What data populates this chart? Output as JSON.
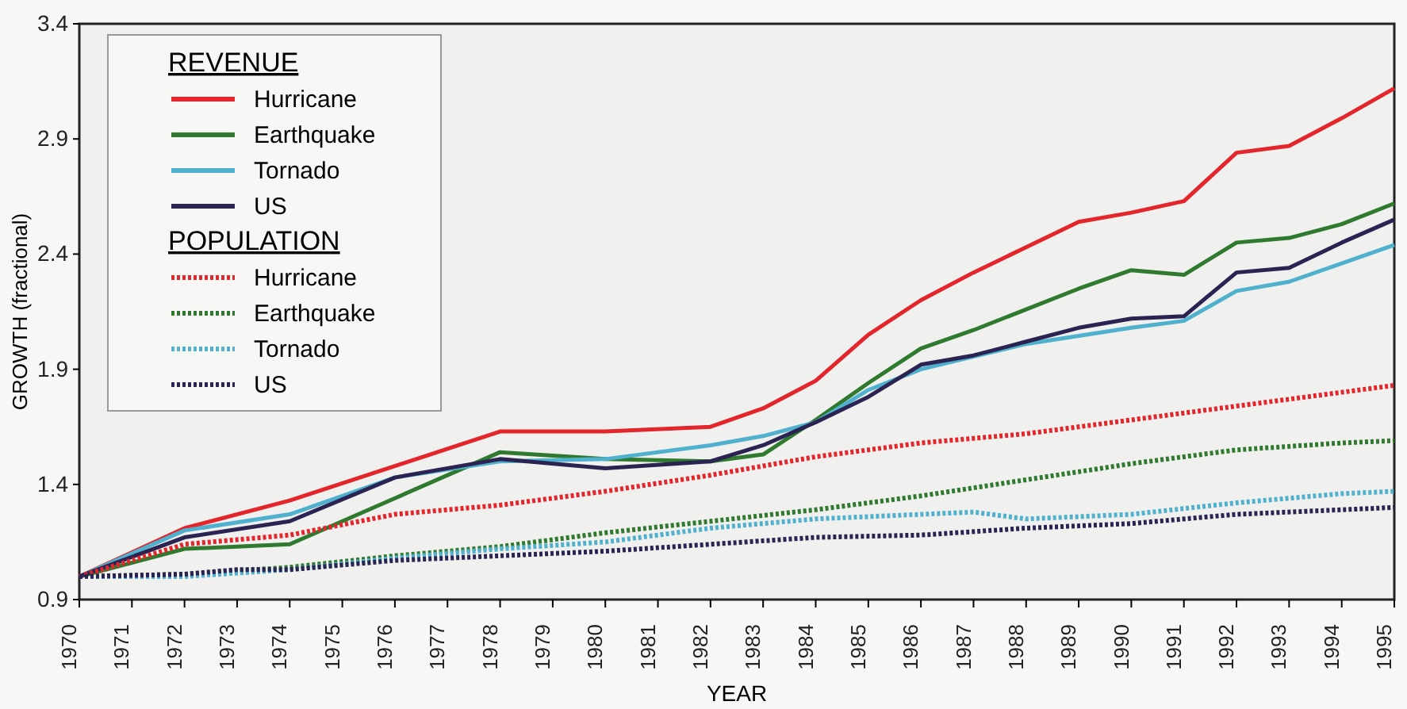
{
  "chart_data": {
    "type": "line",
    "xlabel": "YEAR",
    "ylabel": "GROWTH (fractional)",
    "legend_title": "REVENUE",
    "annotations": [
      "POPULATION"
    ],
    "legend": "top left",
    "grid": false,
    "xlim": [
      1970,
      1995
    ],
    "xticks": [
      1970,
      1971,
      1972,
      1973,
      1974,
      1975,
      1976,
      1977,
      1978,
      1979,
      1980,
      1981,
      1982,
      1983,
      1984,
      1985,
      1986,
      1987,
      1988,
      1989,
      1990,
      1991,
      1992,
      1993,
      1994,
      1995
    ],
    "ylim": [
      0.9,
      3.4
    ],
    "yticks": [
      0.9,
      1.4,
      1.9,
      2.4,
      2.9,
      3.4
    ],
    "series": [
      {
        "name": "Hurricane",
        "color": "#e3262b",
        "line_style": "solid",
        "x": [
          1970,
          1972,
          1974,
          1976,
          1978,
          1980,
          1982,
          1983,
          1984,
          1985,
          1986,
          1987,
          1988,
          1989,
          1990,
          1991,
          1992,
          1993,
          1994,
          1995
        ],
        "values": [
          1.0,
          1.21,
          1.33,
          1.48,
          1.63,
          1.63,
          1.65,
          1.73,
          1.85,
          2.05,
          2.2,
          2.32,
          2.43,
          2.54,
          2.58,
          2.63,
          2.84,
          2.87,
          2.99,
          3.12
        ]
      },
      {
        "name": "Earthquake",
        "color": "#2f7a2f",
        "line_style": "solid",
        "x": [
          1970,
          1972,
          1974,
          1976,
          1978,
          1980,
          1982,
          1983,
          1984,
          1985,
          1986,
          1987,
          1988,
          1989,
          1990,
          1991,
          1992,
          1993,
          1994,
          1995
        ],
        "values": [
          1.0,
          1.12,
          1.14,
          1.34,
          1.54,
          1.51,
          1.5,
          1.53,
          1.68,
          1.84,
          1.99,
          2.07,
          2.16,
          2.25,
          2.33,
          2.31,
          2.45,
          2.47,
          2.53,
          2.62
        ]
      },
      {
        "name": "Tornado",
        "color": "#4fb1cd",
        "line_style": "solid",
        "x": [
          1970,
          1972,
          1974,
          1976,
          1978,
          1980,
          1982,
          1983,
          1984,
          1985,
          1986,
          1988,
          1990,
          1991,
          1992,
          1993,
          1994,
          1995
        ],
        "values": [
          1.0,
          1.2,
          1.27,
          1.43,
          1.5,
          1.51,
          1.57,
          1.61,
          1.67,
          1.81,
          1.9,
          2.01,
          2.08,
          2.11,
          2.24,
          2.28,
          2.36,
          2.44
        ]
      },
      {
        "name": "US",
        "color": "#2b2452",
        "line_style": "solid",
        "x": [
          1970,
          1972,
          1974,
          1976,
          1978,
          1980,
          1982,
          1983,
          1984,
          1985,
          1986,
          1987,
          1988,
          1989,
          1990,
          1991,
          1992,
          1993,
          1994,
          1995
        ],
        "values": [
          1.0,
          1.17,
          1.24,
          1.43,
          1.51,
          1.47,
          1.5,
          1.57,
          1.67,
          1.78,
          1.92,
          1.96,
          2.02,
          2.08,
          2.12,
          2.13,
          2.32,
          2.34,
          2.45,
          2.55
        ]
      },
      {
        "name": "Hurricane",
        "color": "#e3262b",
        "line_style": "dotted",
        "x": [
          1970,
          1972,
          1974,
          1976,
          1978,
          1980,
          1982,
          1984,
          1986,
          1988,
          1990,
          1992,
          1994,
          1995
        ],
        "values": [
          1.0,
          1.14,
          1.18,
          1.27,
          1.31,
          1.37,
          1.44,
          1.52,
          1.58,
          1.62,
          1.68,
          1.74,
          1.8,
          1.83
        ]
      },
      {
        "name": "Earthquake",
        "color": "#2f7a2f",
        "line_style": "dotted",
        "x": [
          1970,
          1972,
          1974,
          1976,
          1978,
          1980,
          1982,
          1984,
          1986,
          1988,
          1990,
          1992,
          1994,
          1995
        ],
        "values": [
          1.0,
          1.01,
          1.04,
          1.09,
          1.13,
          1.19,
          1.24,
          1.29,
          1.35,
          1.42,
          1.49,
          1.55,
          1.58,
          1.59
        ]
      },
      {
        "name": "Tornado",
        "color": "#4fb1cd",
        "line_style": "dotted",
        "x": [
          1970,
          1972,
          1974,
          1976,
          1978,
          1980,
          1982,
          1984,
          1986,
          1987,
          1988,
          1990,
          1992,
          1994,
          1995
        ],
        "values": [
          1.0,
          1.0,
          1.03,
          1.08,
          1.12,
          1.15,
          1.21,
          1.25,
          1.27,
          1.28,
          1.25,
          1.27,
          1.32,
          1.36,
          1.37
        ]
      },
      {
        "name": "US",
        "color": "#2b2452",
        "line_style": "dotted",
        "x": [
          1970,
          1972,
          1973,
          1974,
          1976,
          1978,
          1980,
          1982,
          1984,
          1986,
          1988,
          1990,
          1992,
          1994,
          1995
        ],
        "values": [
          1.0,
          1.01,
          1.03,
          1.03,
          1.07,
          1.09,
          1.11,
          1.14,
          1.17,
          1.18,
          1.21,
          1.23,
          1.27,
          1.29,
          1.3
        ]
      }
    ]
  }
}
